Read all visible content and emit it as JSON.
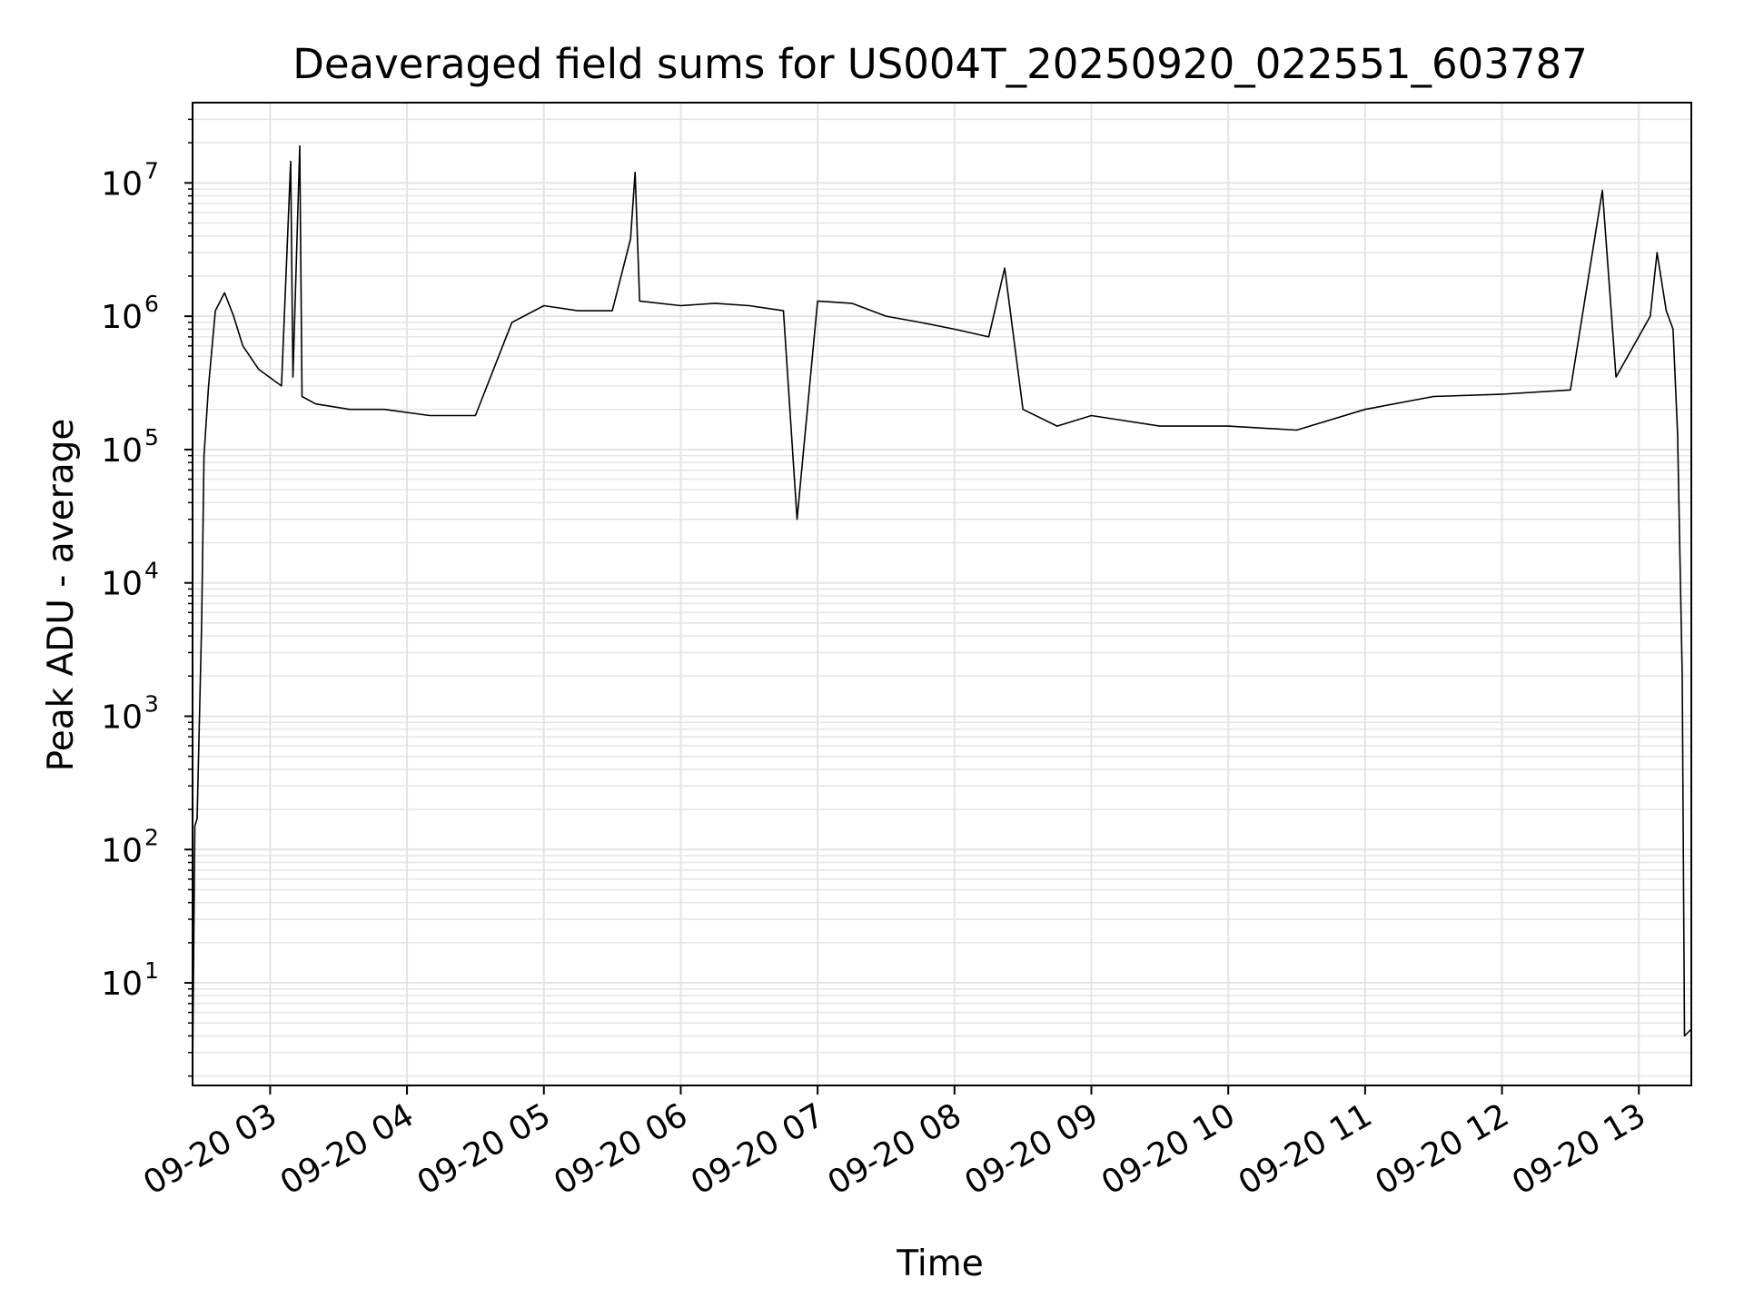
{
  "chart_data": {
    "type": "line",
    "title": "Deaveraged field sums for US004T_20250920_022551_603787",
    "xlabel": "Time",
    "ylabel": "Peak ADU - average",
    "y_scale": "log",
    "ylim": [
      1.7,
      40000000
    ],
    "xlim": [
      "2025-09-20 02:26",
      "2025-09-20 13:23"
    ],
    "grid": true,
    "line_color": "#000000",
    "grid_color": "#e4e4e4",
    "x_tick_labels": [
      "09-20 03",
      "09-20 04",
      "09-20 05",
      "09-20 06",
      "09-20 07",
      "09-20 08",
      "09-20 09",
      "09-20 10",
      "09-20 11",
      "09-20 12",
      "09-20 13"
    ],
    "x_tick_values": [
      "2025-09-20 03:00",
      "2025-09-20 04:00",
      "2025-09-20 05:00",
      "2025-09-20 06:00",
      "2025-09-20 07:00",
      "2025-09-20 08:00",
      "2025-09-20 09:00",
      "2025-09-20 10:00",
      "2025-09-20 11:00",
      "2025-09-20 12:00",
      "2025-09-20 13:00"
    ],
    "y_ticks": [
      {
        "value": 10,
        "base": "10",
        "exp": "1"
      },
      {
        "value": 100,
        "base": "10",
        "exp": "2"
      },
      {
        "value": 1000,
        "base": "10",
        "exp": "3"
      },
      {
        "value": 10000,
        "base": "10",
        "exp": "4"
      },
      {
        "value": 100000,
        "base": "10",
        "exp": "5"
      },
      {
        "value": 1000000,
        "base": "10",
        "exp": "6"
      },
      {
        "value": 10000000,
        "base": "10",
        "exp": "7"
      }
    ],
    "series": [
      {
        "x": [
          "2025-09-20 02:26",
          "2025-09-20 02:27",
          "2025-09-20 02:28",
          "2025-09-20 02:30",
          "2025-09-20 02:31",
          "2025-09-20 02:33",
          "2025-09-20 02:36",
          "2025-09-20 02:40",
          "2025-09-20 02:44",
          "2025-09-20 02:48",
          "2025-09-20 02:55",
          "2025-09-20 03:05",
          "2025-09-20 03:09",
          "2025-09-20 03:10",
          "2025-09-20 03:13",
          "2025-09-20 03:14",
          "2025-09-20 03:20",
          "2025-09-20 03:35",
          "2025-09-20 03:50",
          "2025-09-20 04:10",
          "2025-09-20 04:30",
          "2025-09-20 04:46",
          "2025-09-20 05:00",
          "2025-09-20 05:15",
          "2025-09-20 05:30",
          "2025-09-20 05:38",
          "2025-09-20 05:40",
          "2025-09-20 05:42",
          "2025-09-20 06:00",
          "2025-09-20 06:15",
          "2025-09-20 06:30",
          "2025-09-20 06:45",
          "2025-09-20 06:51",
          "2025-09-20 07:00",
          "2025-09-20 07:15",
          "2025-09-20 07:30",
          "2025-09-20 07:45",
          "2025-09-20 08:00",
          "2025-09-20 08:15",
          "2025-09-20 08:22",
          "2025-09-20 08:30",
          "2025-09-20 08:45",
          "2025-09-20 09:00",
          "2025-09-20 09:30",
          "2025-09-20 10:00",
          "2025-09-20 10:30",
          "2025-09-20 11:00",
          "2025-09-20 11:30",
          "2025-09-20 12:00",
          "2025-09-20 12:30",
          "2025-09-20 12:44",
          "2025-09-20 12:50",
          "2025-09-20 13:05",
          "2025-09-20 13:08",
          "2025-09-20 13:12",
          "2025-09-20 13:15",
          "2025-09-20 13:17",
          "2025-09-20 13:19",
          "2025-09-20 13:20",
          "2025-09-20 13:23"
        ],
        "y": [
          2,
          150,
          170,
          5000,
          90000,
          300000,
          1100000,
          1500000,
          1000000,
          600000,
          400000,
          300000,
          14500000,
          350000,
          19000000,
          250000,
          220000,
          200000,
          200000,
          180000,
          180000,
          900000,
          1200000,
          1100000,
          1100000,
          3800000,
          12000000,
          1300000,
          1200000,
          1250000,
          1200000,
          1100000,
          30000,
          1300000,
          1250000,
          1000000,
          900000,
          800000,
          700000,
          2300000,
          200000,
          150000,
          180000,
          150000,
          150000,
          140000,
          200000,
          250000,
          260000,
          280000,
          8800000,
          350000,
          1000000,
          3000000,
          1100000,
          800000,
          130000,
          2000,
          4,
          4.5
        ]
      }
    ]
  }
}
